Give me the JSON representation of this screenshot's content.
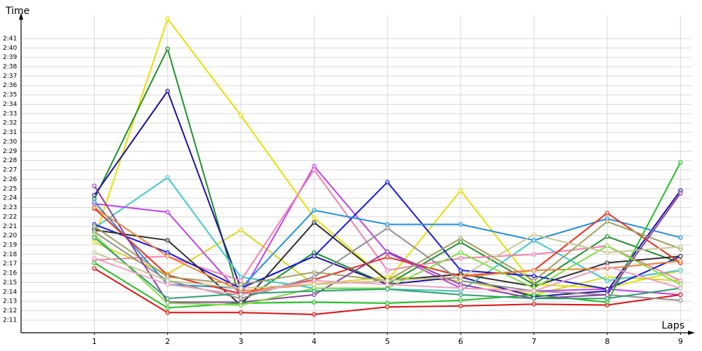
{
  "chart_data": {
    "type": "line",
    "y_label": "Time",
    "x_label": "Laps",
    "x": [
      1,
      2,
      3,
      4,
      5,
      6,
      7,
      8,
      9
    ],
    "xlim": [
      0,
      9.15
    ],
    "xticks": [
      1,
      2,
      3,
      4,
      5,
      6,
      7,
      8,
      9
    ],
    "ylim": [
      129.65,
      163.46
    ],
    "yticks": [
      {
        "value": 131,
        "label": "2:11"
      },
      {
        "value": 132,
        "label": "2:12"
      },
      {
        "value": 133,
        "label": "2:13"
      },
      {
        "value": 134,
        "label": "2:14"
      },
      {
        "value": 135,
        "label": "2:15"
      },
      {
        "value": 136,
        "label": "2:16"
      },
      {
        "value": 137,
        "label": "2:17"
      },
      {
        "value": 138,
        "label": "2:18"
      },
      {
        "value": 139,
        "label": "2:19"
      },
      {
        "value": 140,
        "label": "2:20"
      },
      {
        "value": 141,
        "label": "2:21"
      },
      {
        "value": 142,
        "label": "2:22"
      },
      {
        "value": 143,
        "label": "2:23"
      },
      {
        "value": 144,
        "label": "2:24"
      },
      {
        "value": 145,
        "label": "2:25"
      },
      {
        "value": 146,
        "label": "2:26"
      },
      {
        "value": 147,
        "label": "2:27"
      },
      {
        "value": 148,
        "label": "2:28"
      },
      {
        "value": 149,
        "label": "2:29"
      },
      {
        "value": 150,
        "label": "2:30"
      },
      {
        "value": 151,
        "label": "2:31"
      },
      {
        "value": 152,
        "label": "2:32"
      },
      {
        "value": 153,
        "label": "2:33"
      },
      {
        "value": 154,
        "label": "2:34"
      },
      {
        "value": 155,
        "label": "2:35"
      },
      {
        "value": 156,
        "label": "2:36"
      },
      {
        "value": 157,
        "label": "2:37"
      },
      {
        "value": 158,
        "label": "2:38"
      },
      {
        "value": 159,
        "label": "2:39"
      },
      {
        "value": 160,
        "label": "2:40"
      },
      {
        "value": 161,
        "label": "2:41"
      }
    ],
    "grid": true,
    "series": [
      {
        "color": "#e6e000",
        "values": [
          139.7,
          163.1,
          152.8,
          141.9,
          135.2,
          144.8,
          134.8,
          134.4,
          136.3
        ]
      },
      {
        "color": "#d8d820",
        "values": [
          139.3,
          135.9,
          140.6,
          134.8,
          135.6,
          135.2,
          133.7,
          135.6,
          135.2
        ]
      },
      {
        "color": "#20902a",
        "values": [
          143.9,
          159.9,
          132.9,
          138.2,
          134.8,
          139.3,
          134.8,
          139.9,
          137.1
        ]
      },
      {
        "color": "#2010a0",
        "values": [
          144.3,
          155.4,
          134.4,
          137.8,
          134.8,
          135.6,
          133.5,
          134.1,
          144.8
        ]
      },
      {
        "color": "#40c8c8",
        "values": [
          140.8,
          146.2,
          135.6,
          134.4,
          134.3,
          134.1,
          139.5,
          135.2,
          136.3
        ]
      },
      {
        "color": "#c040f0",
        "values": [
          143.4,
          142.5,
          133.7,
          147.4,
          138.2,
          134.4,
          134.1,
          134.3,
          133.7
        ]
      },
      {
        "color": "#f080b0",
        "values": [
          137.4,
          137.8,
          135.2,
          147.0,
          136.3,
          137.6,
          138.0,
          138.9,
          135.2
        ]
      },
      {
        "color": "#1818e0",
        "values": [
          141.2,
          138.2,
          134.4,
          137.8,
          145.7,
          136.3,
          135.7,
          134.3,
          137.8
        ]
      },
      {
        "color": "#2090e0",
        "values": [
          143.6,
          134.8,
          134.4,
          142.7,
          141.2,
          141.2,
          139.5,
          141.8,
          139.8
        ]
      },
      {
        "color": "#303030",
        "values": [
          140.6,
          139.5,
          132.6,
          141.4,
          135.2,
          135.9,
          134.6,
          137.1,
          137.8
        ]
      },
      {
        "color": "#e01010",
        "values": [
          136.5,
          131.8,
          131.8,
          131.6,
          132.4,
          132.5,
          132.7,
          132.6,
          133.7
        ]
      },
      {
        "color": "#e83020",
        "values": [
          142.9,
          135.8,
          133.8,
          135.3,
          137.7,
          135.7,
          136.3,
          142.4,
          137.1
        ]
      },
      {
        "color": "#20c020",
        "values": [
          137.1,
          132.3,
          132.8,
          132.9,
          132.8,
          133.1,
          133.7,
          132.9,
          147.8
        ]
      },
      {
        "color": "#a0a060",
        "values": [
          141.0,
          135.6,
          134.8,
          136.1,
          135.2,
          139.7,
          135.2,
          141.5,
          138.6
        ]
      },
      {
        "color": "#909090",
        "values": [
          140.4,
          135.2,
          133.3,
          135.6,
          140.8,
          135.2,
          134.1,
          133.7,
          133.1
        ]
      },
      {
        "color": "#9040a0",
        "values": [
          145.3,
          132.9,
          132.9,
          133.7,
          138.3,
          134.8,
          133.3,
          133.7,
          144.5
        ]
      },
      {
        "color": "#f08030",
        "values": [
          143.0,
          137.8,
          134.1,
          134.8,
          135.2,
          135.6,
          136.3,
          136.5,
          137.3
        ]
      },
      {
        "color": "#80e040",
        "values": [
          140.1,
          132.8,
          132.6,
          134.4,
          134.4,
          138.2,
          134.4,
          138.9,
          134.8
        ]
      },
      {
        "color": "#30a070",
        "values": [
          139.8,
          133.3,
          133.8,
          134.1,
          134.3,
          133.7,
          133.3,
          133.3,
          134.4
        ]
      },
      {
        "color": "#c8c890",
        "values": [
          138.2,
          135.2,
          134.4,
          134.8,
          135.2,
          135.6,
          140.1,
          138.2,
          138.8
        ]
      },
      {
        "color": "#f0a0c0",
        "values": [
          137.6,
          134.8,
          133.7,
          135.2,
          134.8,
          134.4,
          134.1,
          136.7,
          134.4
        ]
      }
    ]
  }
}
